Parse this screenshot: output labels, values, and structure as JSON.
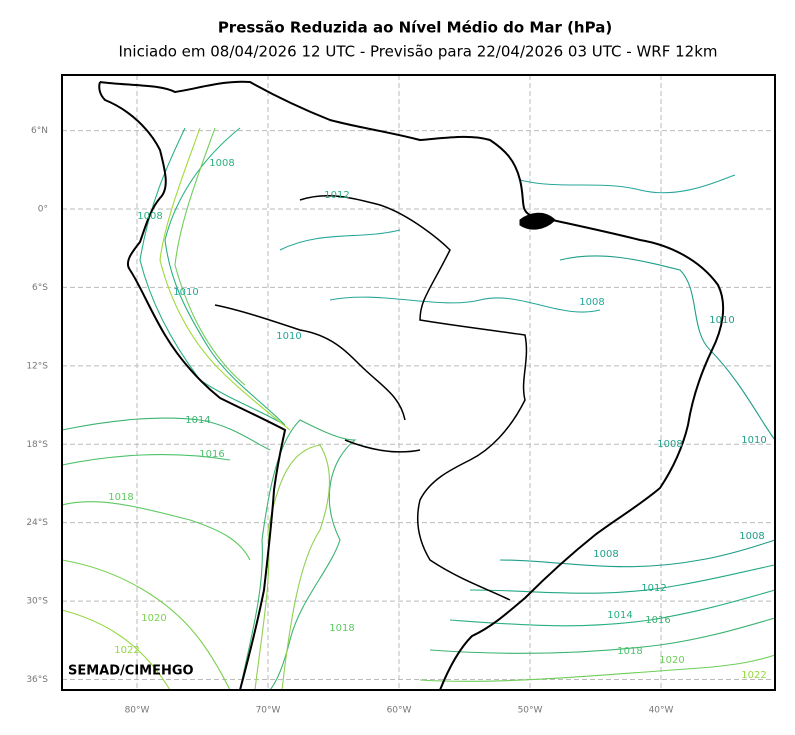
{
  "title": "Pressão Reduzida ao Nível Médio do Mar (hPa)",
  "subtitle": "Iniciado em 08/04/2026 12 UTC - Previsão para 22/04/2026 03 UTC - WRF 12km",
  "lat_ticks": [
    {
      "value": 6,
      "label": "6°N"
    },
    {
      "value": 0,
      "label": "0°"
    },
    {
      "value": -6,
      "label": "6°S"
    },
    {
      "value": -12,
      "label": "12°S"
    },
    {
      "value": -18,
      "label": "18°S"
    },
    {
      "value": -24,
      "label": "24°S"
    },
    {
      "value": -30,
      "label": "30°S"
    },
    {
      "value": -36,
      "label": "36°S"
    }
  ],
  "lon_ticks": [
    {
      "value": -80,
      "label": "80°W"
    },
    {
      "value": -70,
      "label": "70°W"
    },
    {
      "value": -60,
      "label": "60°W"
    },
    {
      "value": -50,
      "label": "50°W"
    },
    {
      "value": -40,
      "label": "40°W"
    }
  ],
  "contour_labels": [
    1008,
    1008,
    1012,
    1010,
    1010,
    1014,
    1016,
    1018,
    1020,
    1022,
    1018,
    1008,
    1010,
    1010,
    1008,
    1008,
    1008,
    1012,
    1014,
    1016,
    1018,
    1020,
    1022
  ],
  "credit": "SEMAD/CIMEHGO"
}
